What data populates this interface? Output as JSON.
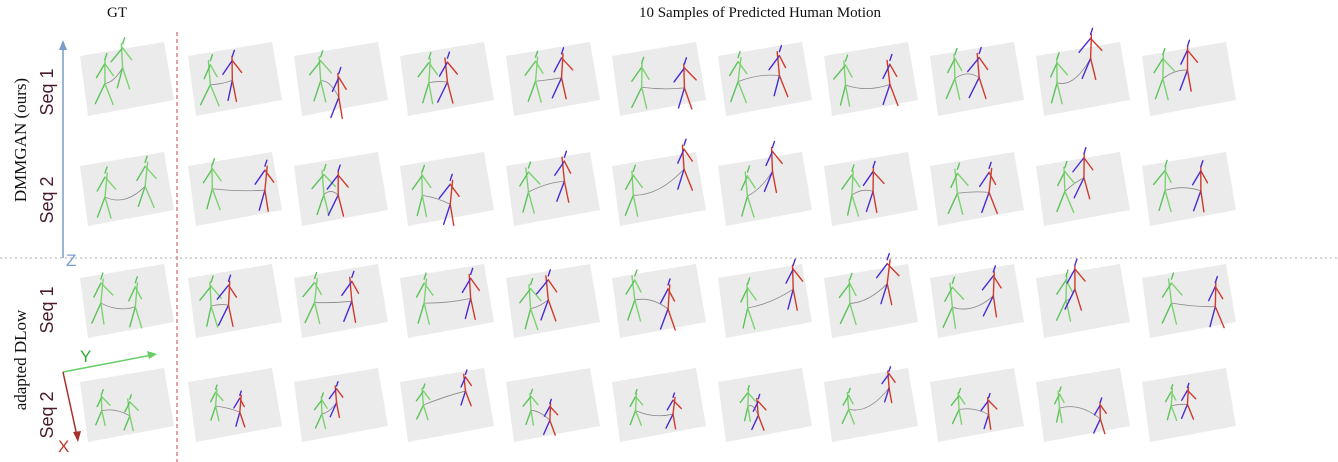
{
  "header": {
    "gt": "GT",
    "samples": "10 Samples of Predicted Human Motion"
  },
  "methods": [
    {
      "name": "DMMGAN (ours)",
      "sequences": [
        "Seq 1",
        "Seq 2"
      ]
    },
    {
      "name": "adapted DLow",
      "sequences": [
        "Seq 1",
        "Seq 2"
      ]
    }
  ],
  "axes": {
    "z": "Z",
    "y": "Y",
    "x": "X"
  }
}
